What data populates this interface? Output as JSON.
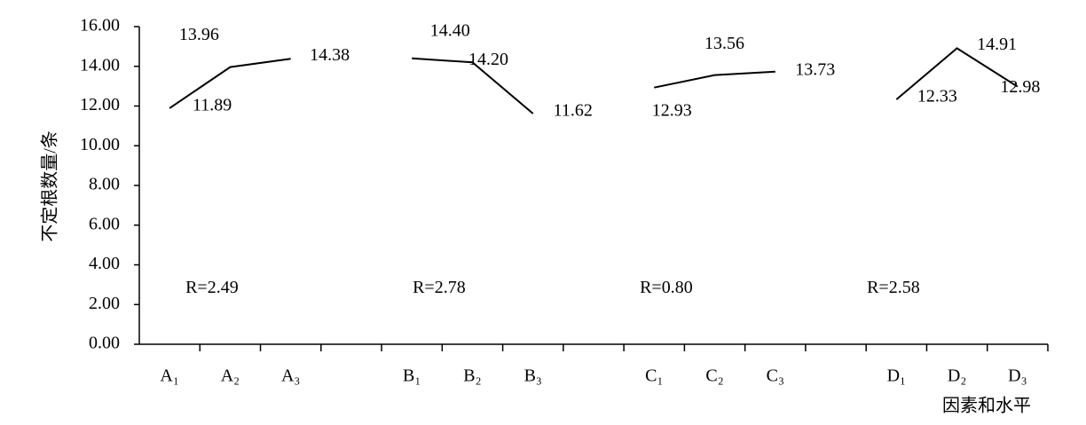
{
  "chart_data": {
    "type": "line",
    "y_label": "不定根数量/条",
    "x_label": "因素和水平",
    "categories": [
      "A₁",
      "A₂",
      "A₃",
      null,
      "B₁",
      "B₂",
      "B₃",
      null,
      "C₁",
      "C₂",
      "C₃",
      null,
      "D₁",
      "D₂",
      "D₃"
    ],
    "values": [
      11.89,
      13.96,
      14.38,
      null,
      14.4,
      14.2,
      11.62,
      null,
      12.93,
      13.56,
      13.73,
      null,
      12.33,
      14.91,
      12.98
    ],
    "value_labels": [
      "11.89",
      "13.96",
      "14.38",
      null,
      "14.40",
      "14.20",
      "11.62",
      null,
      "12.93",
      "13.56",
      "13.73",
      null,
      "12.33",
      "14.91",
      "12.98"
    ],
    "annotations": [
      "R=2.49",
      "R=2.78",
      "R=0.80",
      "R=2.58"
    ],
    "color": "#000000",
    "ylim": [
      0,
      16
    ],
    "yticks": [
      {
        "value": 0,
        "label": "0.00"
      },
      {
        "value": 2,
        "label": "2.00"
      },
      {
        "value": 4,
        "label": "4.00"
      },
      {
        "value": 6,
        "label": "6.00"
      },
      {
        "value": 8,
        "label": "8.00"
      },
      {
        "value": 10,
        "label": "10.00"
      },
      {
        "value": 12,
        "label": "12.00"
      },
      {
        "value": 14,
        "label": "14.00"
      },
      {
        "value": 16,
        "label": "16.00"
      }
    ],
    "grid": false
  }
}
